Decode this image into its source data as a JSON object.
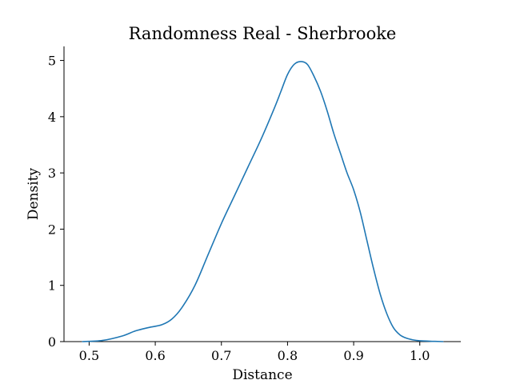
{
  "chart_data": {
    "type": "line",
    "title": "Randomness Real - Sherbrooke",
    "xlabel": "Distance",
    "ylabel": "Density",
    "xlim": [
      0.462,
      1.062
    ],
    "ylim": [
      0,
      5.25
    ],
    "xticks": [
      0.5,
      0.6,
      0.7,
      0.8,
      0.9,
      1.0
    ],
    "xtick_labels": [
      "0.5",
      "0.6",
      "0.7",
      "0.8",
      "0.9",
      "1.0"
    ],
    "yticks": [
      0,
      1,
      2,
      3,
      4,
      5
    ],
    "ytick_labels": [
      "0",
      "1",
      "2",
      "3",
      "4",
      "5"
    ],
    "grid": false,
    "legend": "none",
    "line_color": "#1f77b4",
    "series": [
      {
        "x": [
          0.49,
          0.52,
          0.55,
          0.57,
          0.59,
          0.61,
          0.625,
          0.64,
          0.66,
          0.68,
          0.7,
          0.72,
          0.74,
          0.76,
          0.78,
          0.79,
          0.8,
          0.81,
          0.82,
          0.83,
          0.84,
          0.85,
          0.86,
          0.87,
          0.88,
          0.89,
          0.9,
          0.91,
          0.92,
          0.93,
          0.94,
          0.95,
          0.96,
          0.97,
          0.98,
          0.99,
          1.0,
          1.02,
          1.035
        ],
        "y": [
          0.0,
          0.02,
          0.1,
          0.19,
          0.25,
          0.3,
          0.4,
          0.6,
          1.0,
          1.55,
          2.1,
          2.6,
          3.1,
          3.6,
          4.15,
          4.45,
          4.75,
          4.93,
          4.98,
          4.93,
          4.72,
          4.45,
          4.1,
          3.7,
          3.35,
          3.0,
          2.7,
          2.3,
          1.8,
          1.3,
          0.85,
          0.5,
          0.25,
          0.12,
          0.06,
          0.03,
          0.015,
          0.005,
          0.0
        ]
      }
    ]
  }
}
